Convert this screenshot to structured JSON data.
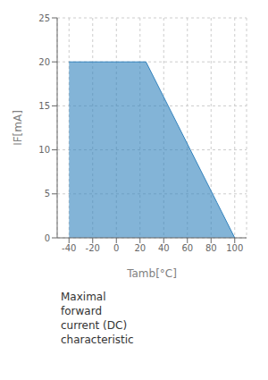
{
  "chart_data": {
    "type": "area",
    "x": [
      -40,
      25,
      85,
      100
    ],
    "values": [
      20,
      20,
      4,
      0
    ],
    "xlim": [
      -50,
      110
    ],
    "xticks": [
      -40,
      -20,
      0,
      20,
      40,
      60,
      80,
      100
    ],
    "ylim": [
      0,
      25
    ],
    "yticks": [
      0,
      5,
      10,
      15,
      20,
      25
    ],
    "grid": true,
    "xlabel": "Tamb[°C]",
    "ylabel": "IF[mA]",
    "annotation": "Maximal\nforward\ncurrent (DC)\ncharacteristic"
  }
}
